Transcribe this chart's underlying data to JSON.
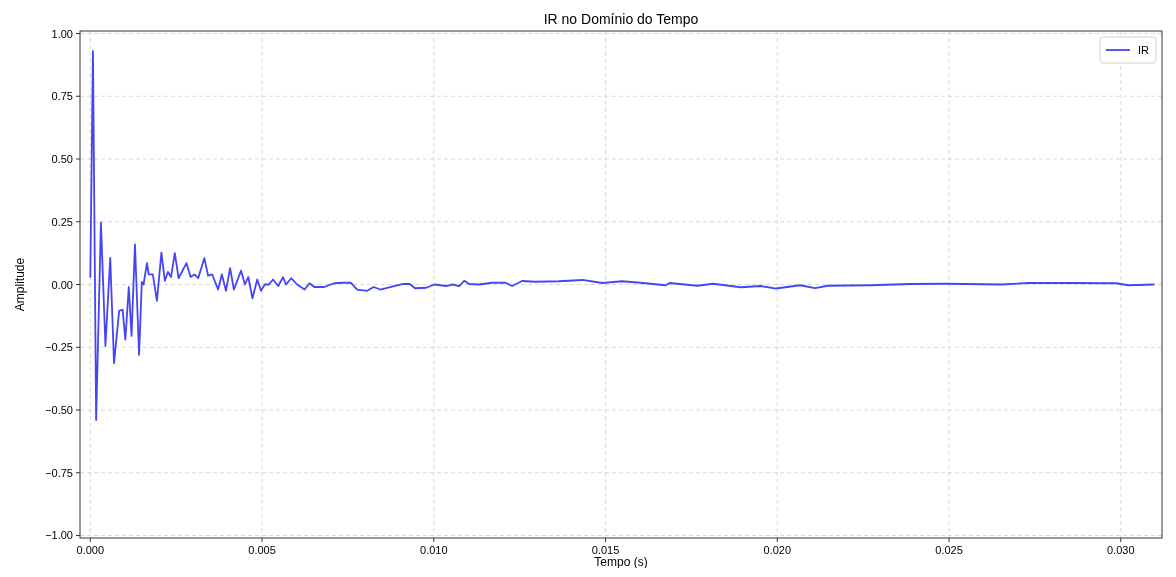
{
  "chart_data": {
    "type": "line",
    "title": "IR no Domínio do Tempo",
    "xlabel": "Tempo (s)",
    "ylabel": "Amplitude",
    "xlim": [
      -0.0003,
      0.0312
    ],
    "ylim": [
      -1.01,
      1.01
    ],
    "xticks": [
      {
        "value": 0,
        "label": "0.000"
      },
      {
        "value": 0.005,
        "label": "0.005"
      },
      {
        "value": 0.01,
        "label": "0.010"
      },
      {
        "value": 0.015,
        "label": "0.015"
      },
      {
        "value": 0.02,
        "label": "0.020"
      },
      {
        "value": 0.025,
        "label": "0.025"
      },
      {
        "value": 0.03,
        "label": "0.030"
      }
    ],
    "yticks": [
      {
        "value": -1,
        "label": "−1.00"
      },
      {
        "value": -0.75,
        "label": "−0.75"
      },
      {
        "value": -0.5,
        "label": "−0.50"
      },
      {
        "value": -0.25,
        "label": "−0.25"
      },
      {
        "value": 0,
        "label": "0.00"
      },
      {
        "value": 0.25,
        "label": "0.25"
      },
      {
        "value": 0.5,
        "label": "0.50"
      },
      {
        "value": 0.75,
        "label": "0.75"
      },
      {
        "value": 1,
        "label": "1.00"
      }
    ],
    "grid": true,
    "legend": "top right",
    "line_style": "solid",
    "marker": "none",
    "series": [
      {
        "name": "IR",
        "color": "#4545f5",
        "x": [
          0,
          7.7e-05,
          0.00017,
          0.00031,
          0.00044,
          0.00058,
          0.00069,
          0.00084,
          0.00094,
          0.00102,
          0.00112,
          0.0012,
          0.0013,
          0.00142,
          0.0015,
          0.00155,
          0.00165,
          0.0017,
          0.00182,
          0.00194,
          0.00207,
          0.00217,
          0.00226,
          0.00235,
          0.00246,
          0.00257,
          0.0028,
          0.00292,
          0.00303,
          0.00314,
          0.00332,
          0.00343,
          0.00355,
          0.00372,
          0.00383,
          0.00395,
          0.00407,
          0.00418,
          0.00439,
          0.0045,
          0.0046,
          0.00472,
          0.00486,
          0.00497,
          0.00508,
          0.0052,
          0.00532,
          0.00547,
          0.00561,
          0.0057,
          0.00585,
          0.00602,
          0.00624,
          0.00638,
          0.00652,
          0.00681,
          0.0071,
          0.00734,
          0.00758,
          0.00777,
          0.00806,
          0.00825,
          0.00844,
          0.00873,
          0.00911,
          0.0093,
          0.00945,
          0.00978,
          0.01002,
          0.01036,
          0.01055,
          0.01074,
          0.01089,
          0.01103,
          0.01132,
          0.0117,
          0.01209,
          0.01228,
          0.01257,
          0.01295,
          0.01364,
          0.01433,
          0.01491,
          0.01548,
          0.01594,
          0.01675,
          0.01686,
          0.01767,
          0.01813,
          0.01894,
          0.01951,
          0.01997,
          0.02066,
          0.0211,
          0.02147,
          0.02273,
          0.02388,
          0.02492,
          0.02653,
          0.02734,
          0.02849,
          0.02987,
          0.03022,
          0.03096
        ],
        "values": [
          0.03,
          0.93,
          -0.54,
          0.247,
          -0.245,
          0.106,
          -0.313,
          -0.105,
          -0.1,
          -0.22,
          -0.01,
          -0.205,
          0.16,
          -0.28,
          0.01,
          0,
          0.085,
          0.04,
          0.04,
          -0.065,
          0.127,
          0.015,
          0.05,
          0.03,
          0.125,
          0.025,
          0.085,
          0.03,
          0.04,
          0.025,
          0.105,
          0.035,
          0.04,
          -0.02,
          0.04,
          -0.025,
          0.065,
          -0.02,
          0.055,
          0,
          0.03,
          -0.055,
          0.02,
          -0.025,
          0,
          0,
          0.02,
          -0.006,
          0.029,
          0,
          0.025,
          0,
          -0.02,
          0.005,
          -0.01,
          -0.01,
          0.005,
          0.007,
          0.007,
          -0.02,
          -0.025,
          -0.01,
          -0.02,
          -0.01,
          0.002,
          0.002,
          -0.015,
          -0.013,
          0,
          -0.006,
          0,
          -0.006,
          0.015,
          0.002,
          0,
          0.007,
          0.007,
          -0.006,
          0.014,
          0.011,
          0.013,
          0.018,
          0.006,
          0.013,
          0.008,
          -0.003,
          0.006,
          -0.005,
          0.003,
          -0.011,
          -0.006,
          -0.016,
          -0.003,
          -0.014,
          -0.005,
          -0.003,
          0.002,
          0.003,
          0,
          0.006,
          0.006,
          0.005,
          -0.003,
          0
        ]
      }
    ]
  }
}
